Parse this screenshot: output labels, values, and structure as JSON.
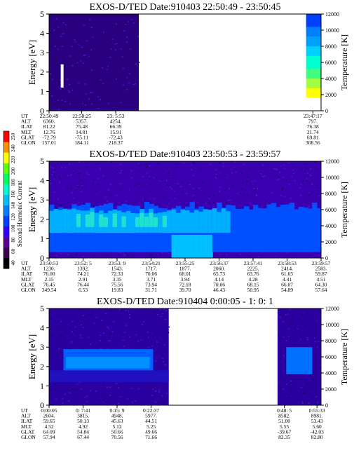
{
  "chart_data": [
    {
      "type": "heatmap",
      "title": "EXOS-D/TED   Date:910403  22:50:49 - 23:50:45",
      "ylabel": "Energy [eV]",
      "ylabel_right": "Temperature [K]",
      "yticks_left": [
        "0",
        "1",
        "2",
        "3",
        "4",
        "5"
      ],
      "ylim_left": [
        0,
        5
      ],
      "yticks_right": [
        "0",
        "2000",
        "4000",
        "6000",
        "8000",
        "10000",
        "12000"
      ],
      "ylim_right": [
        0,
        12000
      ],
      "data_segments": [
        {
          "from": 0.0,
          "to": 0.33,
          "level": "low",
          "gap_after": true
        },
        {
          "from": 0.945,
          "to": 1.0,
          "level": "colorbar"
        }
      ],
      "ephemeris": {
        "labels": [
          "UT",
          "ALT",
          "ILAT",
          "MLT",
          "GLAT",
          "GLON"
        ],
        "columns": [
          {
            "at": 0.0,
            "values": [
              "22:50:49",
              "6360.",
              "81.22",
              "12.76",
              "-72.79",
              "157.01"
            ]
          },
          {
            "at": 0.12,
            "values": [
              "22:58:25",
              "5357.",
              "75.48",
              "14.81",
              "-75.11",
              "184.11"
            ]
          },
          {
            "at": 0.245,
            "values": [
              "23: 5:53",
              "4254.",
              "66.39",
              "15.91",
              "-72.43",
              "218.37"
            ]
          },
          {
            "at": 0.97,
            "values": [
              "23:47:17",
              "797.",
              "76.38",
              "21.74",
              "69.81",
              "308.56"
            ]
          }
        ]
      }
    },
    {
      "type": "heatmap",
      "title": "EXOS-D/TED   Date:910403  23:50:53 - 23:59:57",
      "ylabel": "Energy [eV]",
      "ylabel_right": "Temperature [K]",
      "yticks_left": [
        "0",
        "1",
        "2",
        "3",
        "4",
        "5"
      ],
      "ylim_left": [
        0,
        5
      ],
      "yticks_right": [
        "0",
        "2000",
        "4000",
        "6000",
        "8000",
        "10000",
        "12000"
      ],
      "ylim_right": [
        0,
        12000
      ],
      "data_segments": [
        {
          "from": 0.0,
          "to": 1.0,
          "level": "high"
        }
      ],
      "ephemeris": {
        "labels": [
          "UT",
          "ALT",
          "ILAT",
          "MLT",
          "GLAT",
          "GLON"
        ],
        "columns": [
          {
            "at": 0.0,
            "values": [
              "23:50:53",
              "1230.",
              "76.00",
              "2.15",
              "76.45",
              "349.54"
            ]
          },
          {
            "at": 0.125,
            "values": [
              "23:52: 5",
              "1392.",
              "74.21",
              "2.91",
              "76.44",
              "6.53"
            ]
          },
          {
            "at": 0.25,
            "values": [
              "23:53: 9",
              "1543.",
              "72.33",
              "3.35",
              "75.56",
              "19.83"
            ]
          },
          {
            "at": 0.375,
            "values": [
              "23:54:21",
              "1717.",
              "70.06",
              "3.71",
              "73.94",
              "31.71"
            ]
          },
          {
            "at": 0.5,
            "values": [
              "23:55:25",
              "1877.",
              "68.01",
              "3.94",
              "72.18",
              "39.70"
            ]
          },
          {
            "at": 0.625,
            "values": [
              "23:56:37",
              "2060.",
              "65.73",
              "4.14",
              "70.06",
              "46.43"
            ]
          },
          {
            "at": 0.75,
            "values": [
              "23:57:41",
              "2225.",
              "63.76",
              "4.28",
              "68.15",
              "50.95"
            ]
          },
          {
            "at": 0.875,
            "values": [
              "23:58:53",
              "2414.",
              "61.65",
              "4.41",
              "66.07",
              "54.89"
            ]
          },
          {
            "at": 1.0,
            "values": [
              "23:59:57",
              "2583.",
              "59.87",
              "4.51",
              "64.30",
              "57.64"
            ]
          }
        ]
      }
    },
    {
      "type": "heatmap",
      "title": "EXOS-D/TED   Date:910404   0:00:05 - 1: 0: 1",
      "ylabel": "Energy [eV]",
      "ylabel_right": "Temperature [K]",
      "yticks_left": [
        "0",
        "1",
        "2",
        "3",
        "4",
        "5"
      ],
      "ylim_left": [
        0,
        5
      ],
      "yticks_right": [
        "0",
        "2000",
        "4000",
        "6000",
        "8000",
        "10000",
        "12000"
      ],
      "ylim_right": [
        0,
        12000
      ],
      "data_segments": [
        {
          "from": 0.0,
          "to": 0.44,
          "level": "mid"
        },
        {
          "from": 0.84,
          "to": 1.0,
          "level": "mid"
        }
      ],
      "ephemeris": {
        "labels": [
          "UT",
          "ALT",
          "ILAT",
          "MLT",
          "GLAT",
          "GLON"
        ],
        "columns": [
          {
            "at": 0.0,
            "values": [
              "0:00:05",
              "2604.",
              "59.65",
              "4.52",
              "64.09",
              "57.94"
            ]
          },
          {
            "at": 0.125,
            "values": [
              "0: 7:41",
              "3815.",
              "50.13",
              "4.92",
              "54.84",
              "67.44"
            ]
          },
          {
            "at": 0.25,
            "values": [
              "0:15: 9",
              "4948.",
              "45.63",
              "5.12",
              "50.66",
              "70.56"
            ]
          },
          {
            "at": 0.375,
            "values": [
              "0:22:37",
              "5977.",
              "44.51",
              "5.25",
              "49.66",
              "71.66"
            ]
          },
          {
            "at": 0.865,
            "values": [
              "0:48: 5",
              "8582.",
              "51.00",
              "5.55",
              "-39.67",
              "82.35"
            ]
          },
          {
            "at": 0.985,
            "values": [
              "0:55:33",
              "8981.",
              "53.43",
              "5.60",
              "-42.03",
              "82.80"
            ]
          }
        ]
      }
    }
  ],
  "colorbar": {
    "label": "Second Harmonic Current",
    "ticks": [
      "40",
      "60",
      "80",
      "100",
      "120",
      "140",
      "160",
      "180",
      "200",
      "220",
      "240",
      "250"
    ],
    "colors": [
      "#000000",
      "#3b0050",
      "#5a0099",
      "#3000ff",
      "#0040ff",
      "#0080ff",
      "#00c0ff",
      "#00ffd0",
      "#00ff60",
      "#60ff00",
      "#ffff00",
      "#ff9000",
      "#ff0000"
    ]
  }
}
